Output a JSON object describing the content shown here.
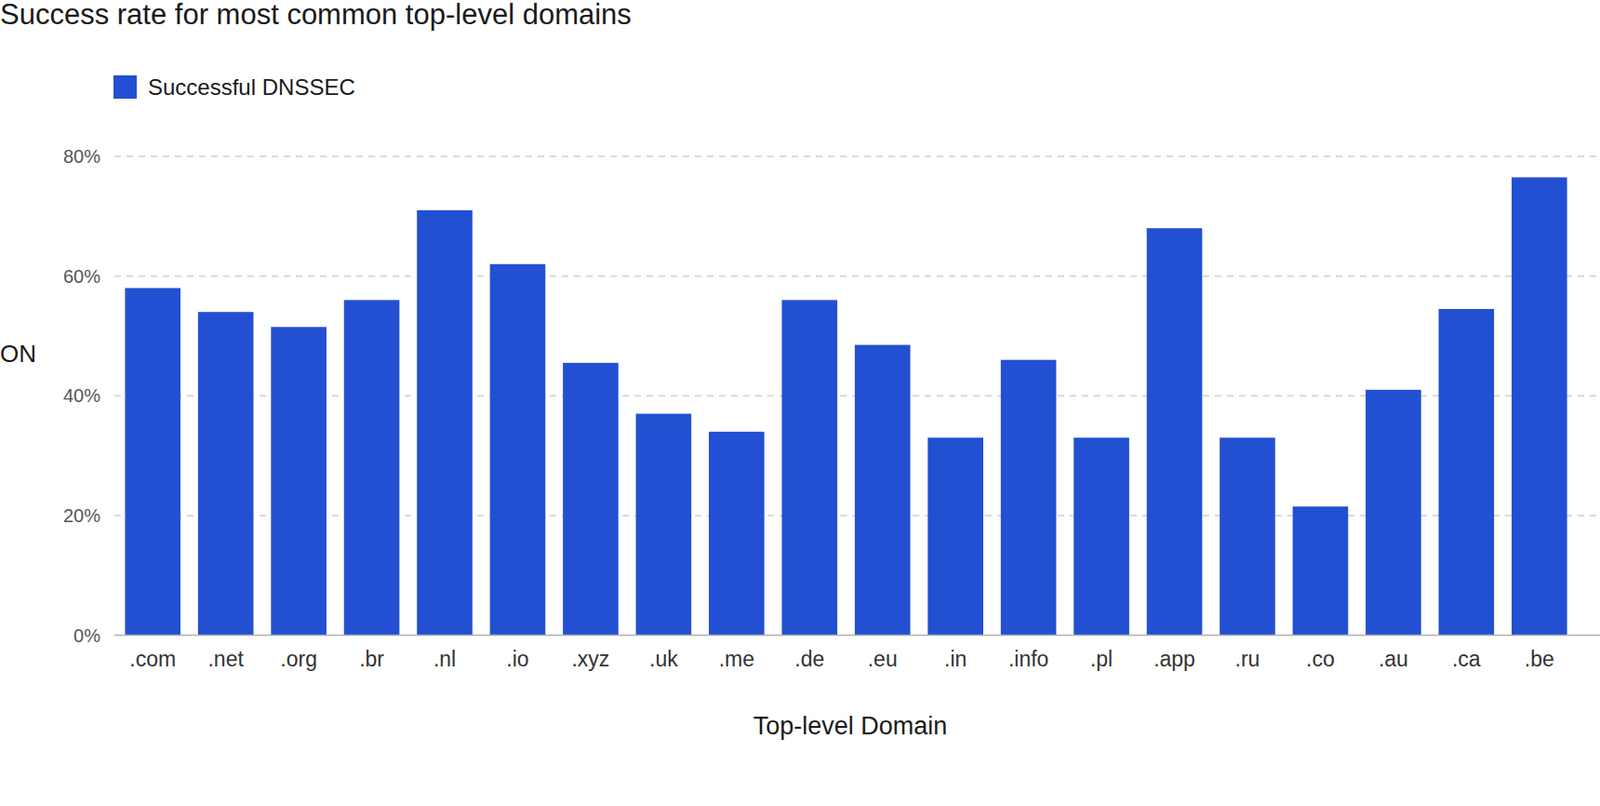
{
  "chart_data": {
    "type": "bar",
    "title": "Success rate for most common top-level domains",
    "x_label": "Top-level Domain",
    "y_label": "ON",
    "categories": [
      ".com",
      ".net",
      ".org",
      ".br",
      ".nl",
      ".io",
      ".xyz",
      ".uk",
      ".me",
      ".de",
      ".eu",
      ".in",
      ".info",
      ".pl",
      ".app",
      ".ru",
      ".co",
      ".au",
      ".ca",
      ".be"
    ],
    "series": [
      {
        "name": "Successful DNSSEC",
        "color": "#2350d2",
        "values": [
          58,
          54,
          51.5,
          56,
          71,
          62,
          45.5,
          37,
          34,
          56,
          48.5,
          33,
          46,
          33,
          68,
          33,
          21.5,
          41,
          54.5,
          76.5
        ]
      }
    ],
    "ylim": [
      0,
      80
    ],
    "yticks": [
      {
        "value": 0,
        "label": "0%"
      },
      {
        "value": 20,
        "label": "20%"
      },
      {
        "value": 40,
        "label": "40%"
      },
      {
        "value": 60,
        "label": "60%"
      },
      {
        "value": 80,
        "label": "80%"
      }
    ],
    "grid": true,
    "legend": "top-left"
  }
}
